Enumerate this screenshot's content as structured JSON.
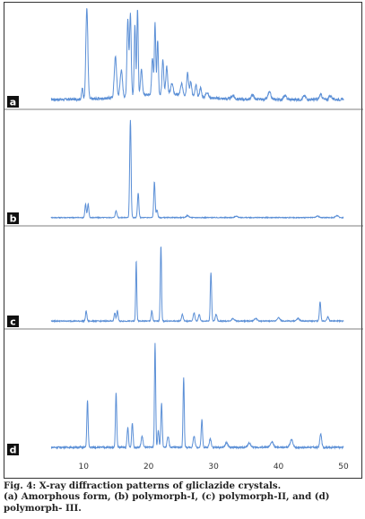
{
  "chart_data": {
    "type": "line",
    "xlim": [
      5,
      50
    ],
    "x_ticks": [
      "10",
      "20",
      "30",
      "40",
      "50"
    ],
    "line_color": "#5b8fd6",
    "panel_label_bg": "#111111",
    "series": [
      {
        "name": "a",
        "baseline": 0.05,
        "noise": 0.03,
        "halo": {
          "center": 22,
          "width": 7,
          "height": 0.06
        },
        "peaks": [
          [
            9.8,
            0.12,
            0.15
          ],
          [
            10.5,
            1.0,
            0.22
          ],
          [
            14.9,
            0.45,
            0.25
          ],
          [
            15.8,
            0.3,
            0.25
          ],
          [
            16.8,
            0.85,
            0.18
          ],
          [
            17.2,
            0.9,
            0.18
          ],
          [
            17.9,
            0.78,
            0.15
          ],
          [
            18.3,
            0.95,
            0.15
          ],
          [
            18.9,
            0.3,
            0.2
          ],
          [
            20.6,
            0.4,
            0.18
          ],
          [
            21.0,
            0.78,
            0.15
          ],
          [
            21.4,
            0.6,
            0.15
          ],
          [
            22.2,
            0.38,
            0.18
          ],
          [
            22.8,
            0.3,
            0.2
          ],
          [
            23.6,
            0.12,
            0.25
          ],
          [
            25.1,
            0.12,
            0.25
          ],
          [
            26.0,
            0.26,
            0.2
          ],
          [
            26.5,
            0.16,
            0.2
          ],
          [
            27.3,
            0.12,
            0.2
          ],
          [
            28.0,
            0.1,
            0.2
          ],
          [
            29.0,
            0.06,
            0.25
          ],
          [
            33.0,
            0.04,
            0.3
          ],
          [
            36.0,
            0.05,
            0.3
          ],
          [
            38.6,
            0.08,
            0.3
          ],
          [
            41.0,
            0.04,
            0.3
          ],
          [
            44.0,
            0.04,
            0.3
          ],
          [
            46.5,
            0.05,
            0.3
          ],
          [
            48.0,
            0.04,
            0.3
          ]
        ]
      },
      {
        "name": "b",
        "baseline": 0.03,
        "noise": 0.008,
        "halo": {
          "center": 20,
          "width": 10,
          "height": 0.0
        },
        "peaks": [
          [
            10.3,
            0.14,
            0.15
          ],
          [
            10.7,
            0.14,
            0.15
          ],
          [
            15.0,
            0.07,
            0.18
          ],
          [
            17.2,
            1.0,
            0.15
          ],
          [
            18.4,
            0.25,
            0.15
          ],
          [
            20.9,
            0.37,
            0.15
          ],
          [
            21.3,
            0.08,
            0.15
          ],
          [
            26.0,
            0.02,
            0.3
          ],
          [
            33.5,
            0.015,
            0.3
          ],
          [
            46.0,
            0.015,
            0.3
          ],
          [
            49.0,
            0.02,
            0.3
          ]
        ]
      },
      {
        "name": "c",
        "baseline": 0.03,
        "noise": 0.012,
        "halo": {
          "center": 20,
          "width": 10,
          "height": 0.0
        },
        "peaks": [
          [
            10.4,
            0.12,
            0.15
          ],
          [
            14.8,
            0.1,
            0.15
          ],
          [
            15.2,
            0.12,
            0.15
          ],
          [
            18.1,
            0.72,
            0.12
          ],
          [
            20.5,
            0.12,
            0.15
          ],
          [
            21.9,
            0.9,
            0.13
          ],
          [
            25.2,
            0.08,
            0.18
          ],
          [
            27.0,
            0.1,
            0.18
          ],
          [
            27.8,
            0.08,
            0.18
          ],
          [
            29.6,
            0.58,
            0.14
          ],
          [
            30.4,
            0.08,
            0.18
          ],
          [
            33.0,
            0.03,
            0.3
          ],
          [
            36.5,
            0.03,
            0.3
          ],
          [
            40.0,
            0.04,
            0.3
          ],
          [
            43.0,
            0.03,
            0.3
          ],
          [
            46.4,
            0.23,
            0.15
          ],
          [
            47.6,
            0.05,
            0.2
          ]
        ]
      },
      {
        "name": "d",
        "baseline": 0.04,
        "noise": 0.015,
        "halo": {
          "center": 20,
          "width": 10,
          "height": 0.0
        },
        "peaks": [
          [
            10.6,
            0.43,
            0.14
          ],
          [
            15.0,
            0.5,
            0.14
          ],
          [
            16.8,
            0.18,
            0.15
          ],
          [
            17.5,
            0.22,
            0.15
          ],
          [
            19.0,
            0.1,
            0.2
          ],
          [
            21.0,
            0.94,
            0.13
          ],
          [
            21.5,
            0.15,
            0.15
          ],
          [
            22.0,
            0.4,
            0.15
          ],
          [
            23.0,
            0.1,
            0.2
          ],
          [
            25.4,
            0.64,
            0.13
          ],
          [
            27.0,
            0.1,
            0.2
          ],
          [
            28.2,
            0.25,
            0.15
          ],
          [
            29.5,
            0.08,
            0.2
          ],
          [
            32.0,
            0.04,
            0.3
          ],
          [
            35.5,
            0.04,
            0.3
          ],
          [
            39.0,
            0.05,
            0.3
          ],
          [
            42.0,
            0.07,
            0.3
          ],
          [
            46.5,
            0.12,
            0.2
          ]
        ]
      }
    ]
  },
  "caption": {
    "title": "Fig. 4: X-ray diffraction patterns of gliclazide crystals.",
    "line1": "(a) Amorphous form, (b) polymorph-I, (c) polymorph-II, and (d)",
    "line2": "polymorph- III."
  }
}
